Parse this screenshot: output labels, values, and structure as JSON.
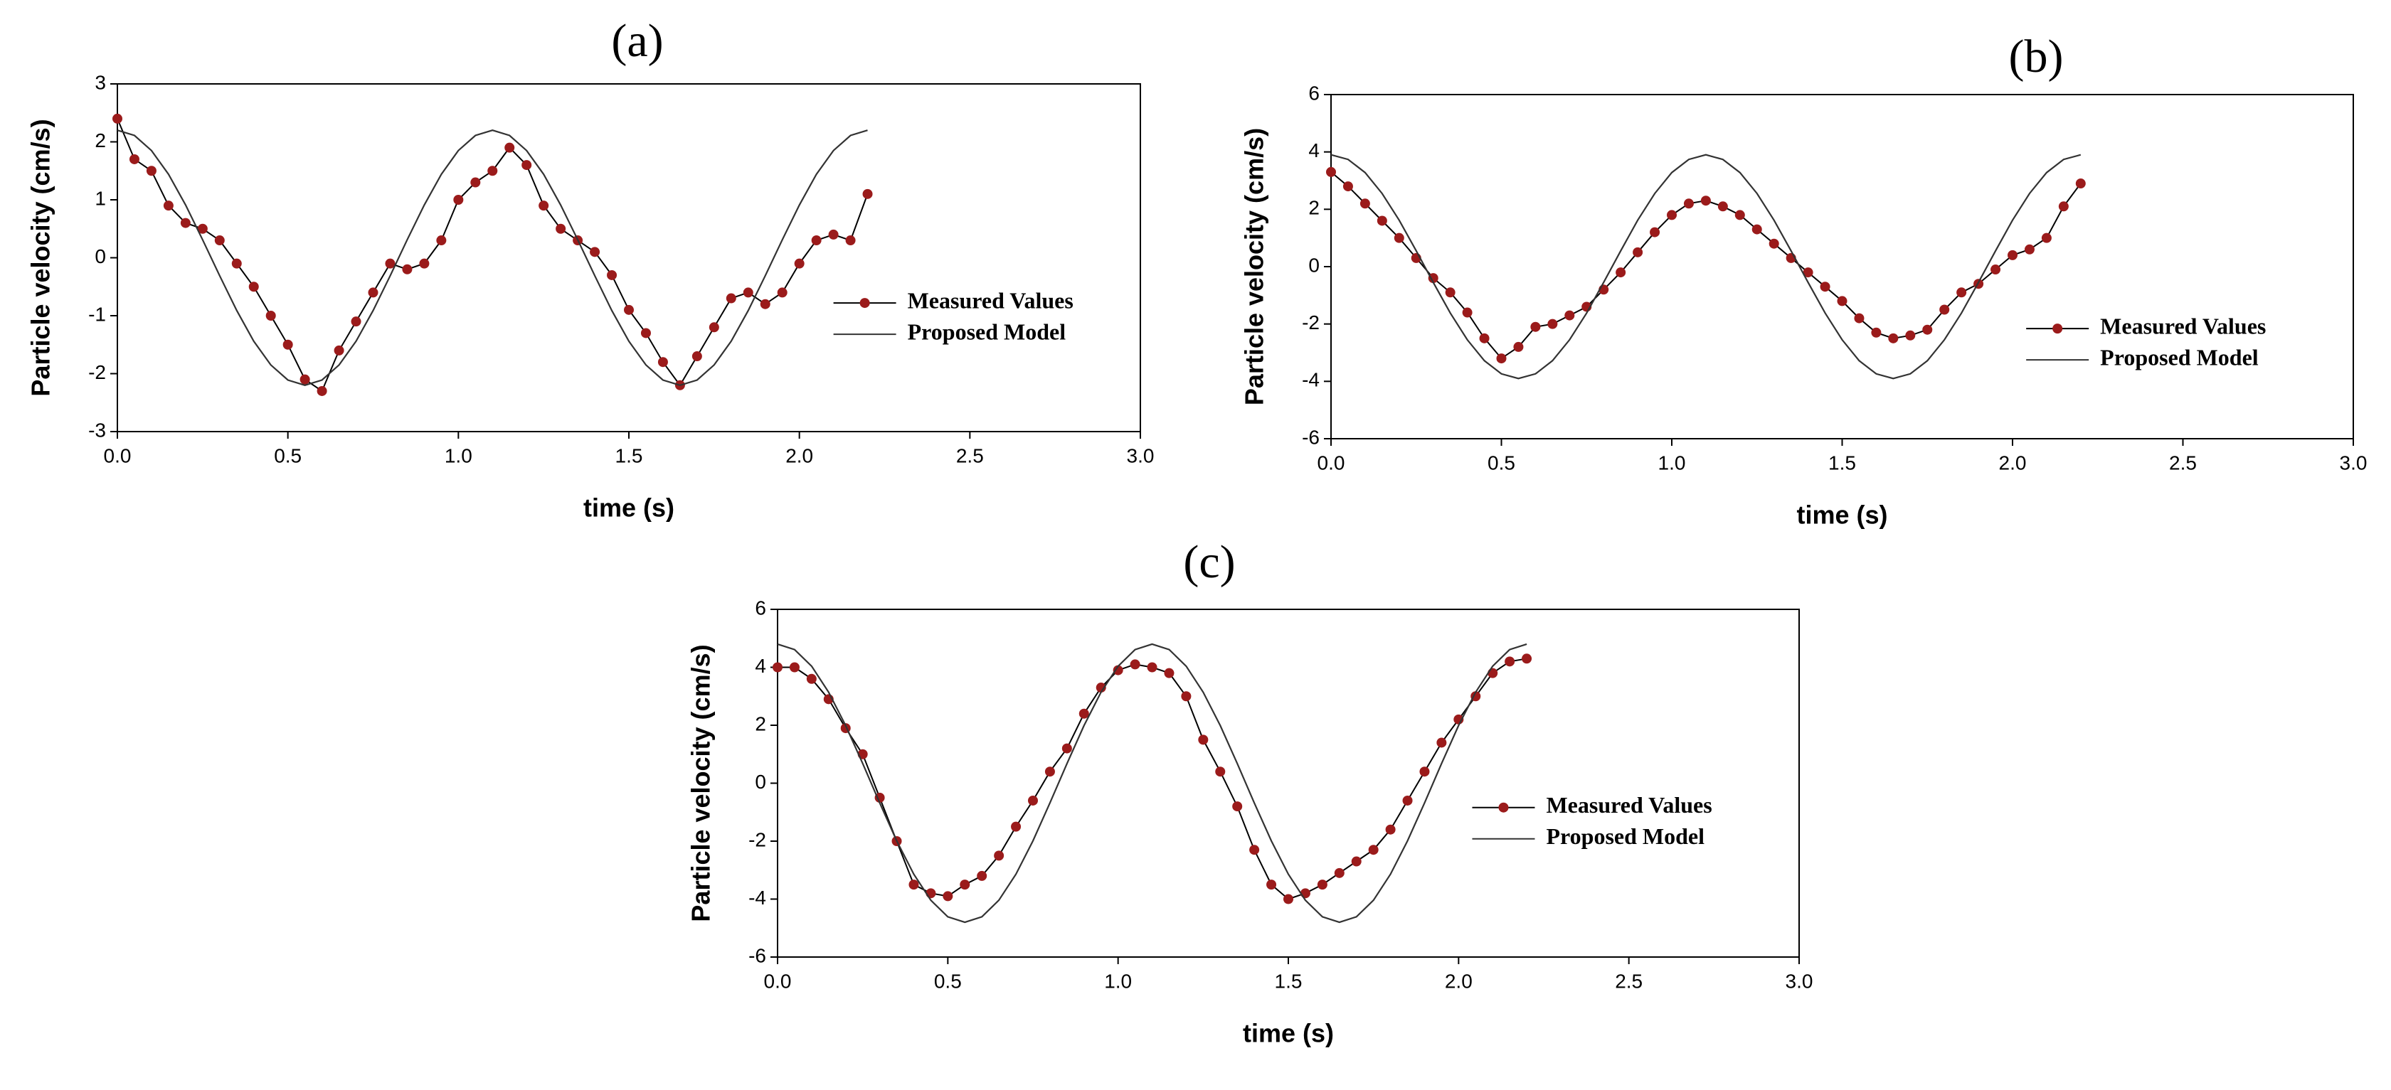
{
  "chart_data": [
    {
      "type": "line",
      "title": "(a)",
      "x_label": "time (s)",
      "y_label": "Particle velocity (cm/s)",
      "x": [
        0,
        0.05,
        0.1,
        0.15,
        0.2,
        0.25,
        0.3,
        0.35,
        0.4,
        0.45,
        0.5,
        0.55,
        0.6,
        0.65,
        0.7,
        0.75,
        0.8,
        0.85,
        0.9,
        0.95,
        1.0,
        1.05,
        1.1,
        1.15,
        1.2,
        1.25,
        1.3,
        1.35,
        1.4,
        1.45,
        1.5,
        1.55,
        1.6,
        1.65,
        1.7,
        1.75,
        1.8,
        1.85,
        1.9,
        1.95,
        2.0,
        2.05,
        2.1,
        2.15,
        2.2
      ],
      "series": [
        {
          "name": "Measured Values",
          "color": "#9b1b1b",
          "marker": true,
          "values": [
            2.4,
            1.7,
            1.5,
            0.9,
            0.6,
            0.5,
            0.3,
            -0.1,
            -0.5,
            -1.0,
            -1.5,
            -2.1,
            -2.3,
            -1.6,
            -1.1,
            -0.6,
            -0.1,
            -0.2,
            -0.1,
            0.3,
            1.0,
            1.3,
            1.5,
            1.9,
            1.6,
            0.9,
            0.5,
            0.3,
            0.1,
            -0.3,
            -0.9,
            -1.3,
            -1.8,
            -2.2,
            -1.7,
            -1.2,
            -0.7,
            -0.6,
            -0.8,
            -0.6,
            -0.1,
            0.3,
            0.4,
            0.3,
            1.1
          ]
        },
        {
          "name": "Proposed Model",
          "color": "#333333",
          "marker": false,
          "values": [
            2.2,
            2.11,
            1.85,
            1.44,
            0.91,
            0.31,
            -0.31,
            -0.91,
            -1.44,
            -1.85,
            -2.11,
            -2.2,
            -2.11,
            -1.85,
            -1.44,
            -0.91,
            -0.31,
            0.31,
            0.91,
            1.44,
            1.85,
            2.11,
            2.2,
            2.11,
            1.85,
            1.44,
            0.91,
            0.31,
            -0.31,
            -0.91,
            -1.44,
            -1.85,
            -2.11,
            -2.2,
            -2.11,
            -1.85,
            -1.44,
            -0.91,
            -0.31,
            0.31,
            0.91,
            1.44,
            1.85,
            2.11,
            2.2
          ]
        }
      ],
      "xlim": [
        0,
        3
      ],
      "xticks": [
        {
          "value": 0,
          "label": "0.0"
        },
        {
          "value": 0.5,
          "label": "0.5"
        },
        {
          "value": 1,
          "label": "1.0"
        },
        {
          "value": 1.5,
          "label": "1.5"
        },
        {
          "value": 2,
          "label": "2.0"
        },
        {
          "value": 2.5,
          "label": "2.5"
        },
        {
          "value": 3,
          "label": "3.0"
        }
      ],
      "ylim": [
        -3,
        3
      ],
      "yticks": [
        -3,
        -2,
        -1,
        0,
        1,
        2,
        3
      ],
      "legend": "right"
    },
    {
      "type": "line",
      "title": "(b)",
      "x_label": "time (s)",
      "y_label": "Particle velocity (cm/s)",
      "x": [
        0,
        0.05,
        0.1,
        0.15,
        0.2,
        0.25,
        0.3,
        0.35,
        0.4,
        0.45,
        0.5,
        0.55,
        0.6,
        0.65,
        0.7,
        0.75,
        0.8,
        0.85,
        0.9,
        0.95,
        1.0,
        1.05,
        1.1,
        1.15,
        1.2,
        1.25,
        1.3,
        1.35,
        1.4,
        1.45,
        1.5,
        1.55,
        1.6,
        1.65,
        1.7,
        1.75,
        1.8,
        1.85,
        1.9,
        1.95,
        2.0,
        2.05,
        2.1,
        2.15,
        2.2
      ],
      "series": [
        {
          "name": "Measured Values",
          "color": "#9b1b1b",
          "marker": true,
          "values": [
            3.3,
            2.8,
            2.2,
            1.6,
            1.0,
            0.3,
            -0.4,
            -0.9,
            -1.6,
            -2.5,
            -3.2,
            -2.8,
            -2.1,
            -2.0,
            -1.7,
            -1.4,
            -0.8,
            -0.2,
            0.5,
            1.2,
            1.8,
            2.2,
            2.3,
            2.1,
            1.8,
            1.3,
            0.8,
            0.3,
            -0.2,
            -0.7,
            -1.2,
            -1.8,
            -2.3,
            -2.5,
            -2.4,
            -2.2,
            -1.5,
            -0.9,
            -0.6,
            -0.1,
            0.4,
            0.6,
            1.0,
            2.1,
            2.9
          ]
        },
        {
          "name": "Proposed Model",
          "color": "#333333",
          "marker": false,
          "values": [
            3.9,
            3.74,
            3.28,
            2.55,
            1.62,
            0.55,
            -0.55,
            -1.62,
            -2.55,
            -3.28,
            -3.74,
            -3.9,
            -3.74,
            -3.28,
            -2.55,
            -1.62,
            -0.55,
            0.55,
            1.62,
            2.55,
            3.28,
            3.74,
            3.9,
            3.74,
            3.28,
            2.55,
            1.62,
            0.55,
            -0.55,
            -1.62,
            -2.55,
            -3.28,
            -3.74,
            -3.9,
            -3.74,
            -3.28,
            -2.55,
            -1.62,
            -0.55,
            0.55,
            1.62,
            2.55,
            3.28,
            3.74,
            3.9
          ]
        }
      ],
      "xlim": [
        0,
        3
      ],
      "xticks": [
        {
          "value": 0,
          "label": "0.0"
        },
        {
          "value": 0.5,
          "label": "0.5"
        },
        {
          "value": 1,
          "label": "1.0"
        },
        {
          "value": 1.5,
          "label": "1.5"
        },
        {
          "value": 2,
          "label": "2.0"
        },
        {
          "value": 2.5,
          "label": "2.5"
        },
        {
          "value": 3,
          "label": "3.0"
        }
      ],
      "ylim": [
        -6,
        6
      ],
      "yticks": [
        -6,
        -4,
        -2,
        0,
        2,
        4,
        6
      ],
      "legend": "right"
    },
    {
      "type": "line",
      "title": "(c)",
      "x_label": "time (s)",
      "y_label": "Particle velocity (cm/s)",
      "x": [
        0,
        0.05,
        0.1,
        0.15,
        0.2,
        0.25,
        0.3,
        0.35,
        0.4,
        0.45,
        0.5,
        0.55,
        0.6,
        0.65,
        0.7,
        0.75,
        0.8,
        0.85,
        0.9,
        0.95,
        1.0,
        1.05,
        1.1,
        1.15,
        1.2,
        1.25,
        1.3,
        1.35,
        1.4,
        1.45,
        1.5,
        1.55,
        1.6,
        1.65,
        1.7,
        1.75,
        1.8,
        1.85,
        1.9,
        1.95,
        2.0,
        2.05,
        2.1,
        2.15,
        2.2
      ],
      "series": [
        {
          "name": "Measured Values",
          "color": "#9b1b1b",
          "marker": true,
          "values": [
            4.0,
            4.0,
            3.6,
            2.9,
            1.9,
            1.0,
            -0.5,
            -2.0,
            -3.5,
            -3.8,
            -3.9,
            -3.5,
            -3.2,
            -2.5,
            -1.5,
            -0.6,
            0.4,
            1.2,
            2.4,
            3.3,
            3.9,
            4.1,
            4.0,
            3.8,
            3.0,
            1.5,
            0.4,
            -0.8,
            -2.3,
            -3.5,
            -4.0,
            -3.8,
            -3.5,
            -3.1,
            -2.7,
            -2.3,
            -1.6,
            -0.6,
            0.4,
            1.4,
            2.2,
            3.0,
            3.8,
            4.2,
            4.3
          ]
        },
        {
          "name": "Proposed Model",
          "color": "#333333",
          "marker": false,
          "values": [
            4.8,
            4.61,
            4.04,
            3.14,
            1.99,
            0.68,
            -0.68,
            -1.99,
            -3.14,
            -4.04,
            -4.61,
            -4.8,
            -4.61,
            -4.04,
            -3.14,
            -1.99,
            -0.68,
            0.68,
            1.99,
            3.14,
            4.04,
            4.61,
            4.8,
            4.61,
            4.04,
            3.14,
            1.99,
            0.68,
            -0.68,
            -1.99,
            -3.14,
            -4.04,
            -4.61,
            -4.8,
            -4.61,
            -4.04,
            -3.14,
            -1.99,
            -0.68,
            0.68,
            1.99,
            3.14,
            4.04,
            4.61,
            4.8
          ]
        }
      ],
      "xlim": [
        0,
        3
      ],
      "xticks": [
        {
          "value": 0,
          "label": "0.0"
        },
        {
          "value": 0.5,
          "label": "0.5"
        },
        {
          "value": 1,
          "label": "1.0"
        },
        {
          "value": 1.5,
          "label": "1.5"
        },
        {
          "value": 2,
          "label": "2.0"
        },
        {
          "value": 2.5,
          "label": "2.5"
        },
        {
          "value": 3,
          "label": "3.0"
        }
      ],
      "ylim": [
        -6,
        6
      ],
      "yticks": [
        -6,
        -4,
        -2,
        0,
        2,
        4,
        6
      ],
      "legend": "right"
    }
  ]
}
